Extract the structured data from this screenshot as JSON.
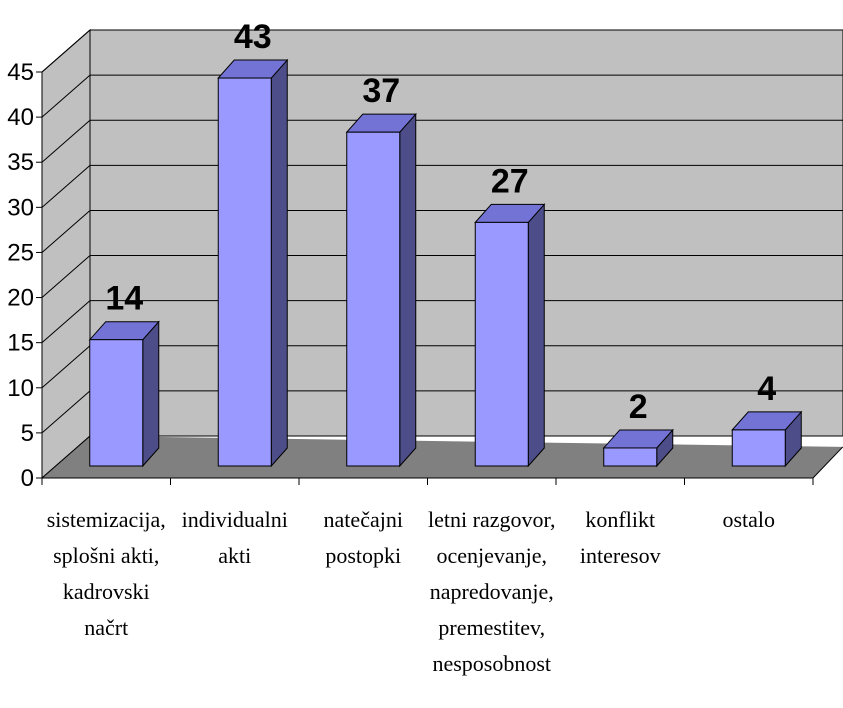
{
  "chart_data": {
    "type": "bar3d",
    "categories": [
      [
        "sistemizacija,",
        "splošni akti,",
        "kadrovski",
        "načrt"
      ],
      [
        "individualni",
        "akti"
      ],
      [
        "natečajni",
        "postopki"
      ],
      [
        "letni razgovor,",
        "ocenjevanje,",
        "napredovanje,",
        "premestitev,",
        "nesposobnost"
      ],
      [
        "konflikt",
        "interesov"
      ],
      [
        "ostalo"
      ]
    ],
    "values": [
      14,
      43,
      37,
      27,
      2,
      4
    ],
    "color": "#9999ff",
    "ylim": [
      0,
      45
    ],
    "yticks": [
      0,
      5,
      10,
      15,
      20,
      25,
      30,
      35,
      40,
      45
    ],
    "grid": true
  }
}
